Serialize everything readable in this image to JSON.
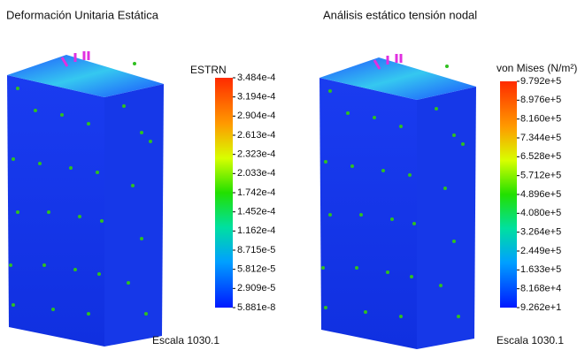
{
  "panels": [
    {
      "title": "Deformación Unitaria Estática",
      "legend_title": "ESTRN",
      "legend_labels": [
        "3.484e-4",
        "3.194e-4",
        "2.904e-4",
        "2.613e-4",
        "2.323e-4",
        "2.033e-4",
        "1.742e-4",
        "1.452e-4",
        "1.162e-4",
        "8.715e-5",
        "5.812e-5",
        "2.909e-5",
        "5.881e-8"
      ],
      "scale": "Escala 1030.1"
    },
    {
      "title": "Análisis estático tensión nodal",
      "legend_title": "von Mises (N/m²)",
      "legend_labels": [
        "9.792e+5",
        "8.976e+5",
        "8.160e+5",
        "7.344e+5",
        "6.528e+5",
        "5.712e+5",
        "4.896e+5",
        "4.080e+5",
        "3.264e+5",
        "2.449e+5",
        "1.633e+5",
        "8.168e+4",
        "9.262e+1"
      ],
      "scale": "Escala 1030.1"
    }
  ]
}
